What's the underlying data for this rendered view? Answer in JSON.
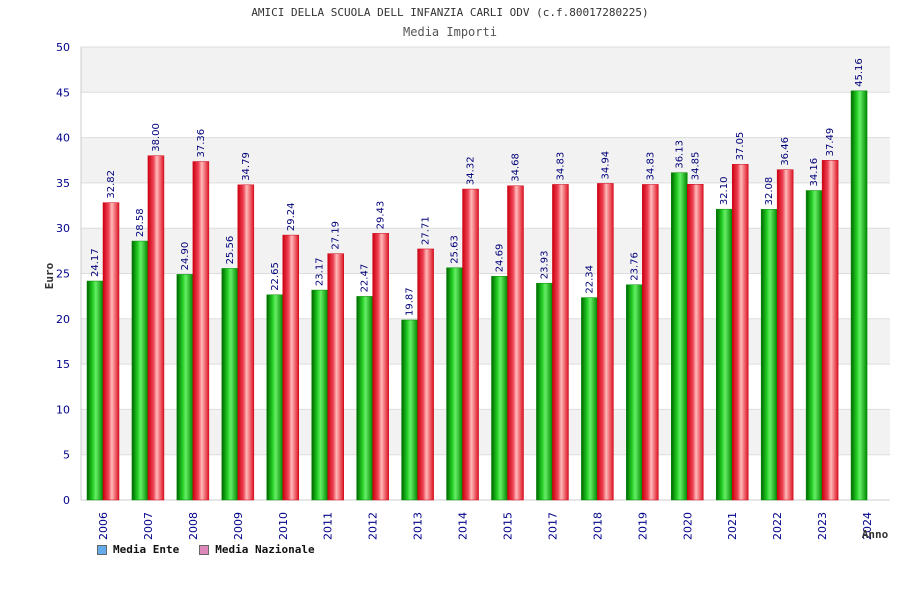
{
  "chart_data": {
    "type": "bar",
    "title": "AMICI DELLA SCUOLA DELL INFANZIA CARLI ODV (c.f.80017280225)",
    "subtitle": "Media Importi",
    "xlabel": "Anno",
    "ylabel": "Euro",
    "ylim": [
      0,
      50
    ],
    "yticks": [
      0,
      5,
      10,
      15,
      20,
      25,
      30,
      35,
      40,
      45,
      50
    ],
    "grid": true,
    "legend_position": "bottom-left",
    "categories": [
      "2006",
      "2007",
      "2008",
      "2009",
      "2010",
      "2011",
      "2012",
      "2013",
      "2014",
      "2015",
      "2017",
      "2018",
      "2019",
      "2020",
      "2021",
      "2022",
      "2023",
      "2024"
    ],
    "series": [
      {
        "name": "Media Ente",
        "color": "#00aa00",
        "legend_color": "#66aaee",
        "values": [
          24.17,
          28.58,
          24.9,
          25.56,
          22.65,
          23.17,
          22.47,
          19.87,
          25.63,
          24.69,
          23.93,
          22.34,
          23.76,
          36.13,
          32.1,
          32.08,
          34.16,
          45.16
        ],
        "labels": [
          "24.17",
          "28.58",
          "24.90",
          "25.56",
          "22.65",
          "23.17",
          "22.47",
          "19.87",
          "25.63",
          "24.69",
          "23.93",
          "22.34",
          "23.76",
          "36.13",
          "32.10",
          "32.08",
          "34.16",
          "45.16"
        ]
      },
      {
        "name": "Media Nazionale",
        "color": "#ee1122",
        "legend_color": "#dd88bb",
        "values": [
          32.82,
          38.0,
          37.36,
          34.79,
          29.24,
          27.19,
          29.43,
          27.71,
          34.32,
          34.68,
          34.83,
          34.94,
          34.83,
          34.85,
          37.05,
          36.46,
          37.49,
          null
        ],
        "labels": [
          "32.82",
          "38.00",
          "37.36",
          "34.79",
          "29.24",
          "27.19",
          "29.43",
          "27.71",
          "34.32",
          "34.68",
          "34.83",
          "34.94",
          "34.83",
          "34.85",
          "37.05",
          "36.46",
          "37.49",
          ""
        ]
      }
    ]
  }
}
